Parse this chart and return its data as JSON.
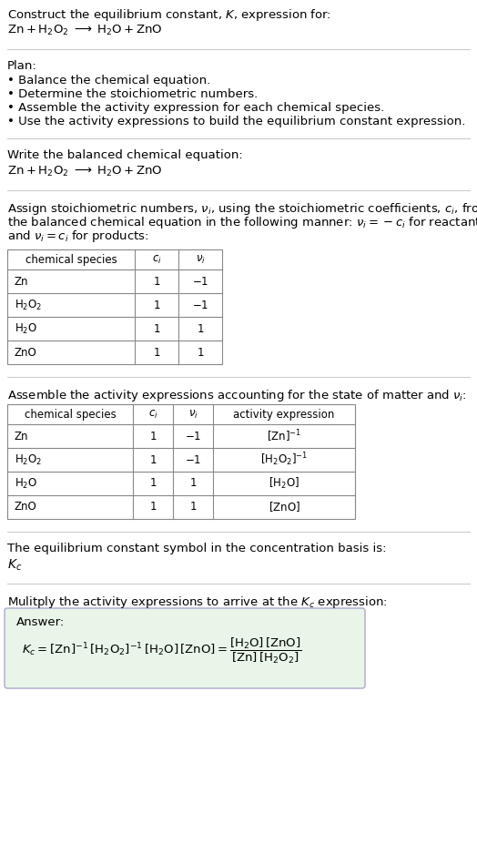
{
  "bg_color": "#ffffff",
  "text_color": "#000000",
  "title_line1": "Construct the equilibrium constant, $K$, expression for:",
  "title_line2": "$\\mathrm{Zn + H_2O_2 \\;\\longrightarrow\\; H_2O + ZnO}$",
  "plan_header": "Plan:",
  "plan_items": [
    "• Balance the chemical equation.",
    "• Determine the stoichiometric numbers.",
    "• Assemble the activity expression for each chemical species.",
    "• Use the activity expressions to build the equilibrium constant expression."
  ],
  "balanced_header": "Write the balanced chemical equation:",
  "balanced_eq": "$\\mathrm{Zn + H_2O_2 \\;\\longrightarrow\\; H_2O + ZnO}$",
  "stoich_text": [
    "Assign stoichiometric numbers, $\\nu_i$, using the stoichiometric coefficients, $c_i$, from",
    "the balanced chemical equation in the following manner: $\\nu_i = -c_i$ for reactants",
    "and $\\nu_i = c_i$ for products:"
  ],
  "table1_headers": [
    "chemical species",
    "$c_i$",
    "$\\nu_i$"
  ],
  "table1_rows": [
    [
      "Zn",
      "1",
      "$-1$"
    ],
    [
      "$\\mathrm{H_2O_2}$",
      "1",
      "$-1$"
    ],
    [
      "$\\mathrm{H_2O}$",
      "1",
      "1"
    ],
    [
      "ZnO",
      "1",
      "1"
    ]
  ],
  "activity_header": "Assemble the activity expressions accounting for the state of matter and $\\nu_i$:",
  "table2_headers": [
    "chemical species",
    "$c_i$",
    "$\\nu_i$",
    "activity expression"
  ],
  "table2_rows": [
    [
      "Zn",
      "1",
      "$-1$",
      "$[\\mathrm{Zn}]^{-1}$"
    ],
    [
      "$\\mathrm{H_2O_2}$",
      "1",
      "$-1$",
      "$[\\mathrm{H_2O_2}]^{-1}$"
    ],
    [
      "$\\mathrm{H_2O}$",
      "1",
      "1",
      "$[\\mathrm{H_2O}]$"
    ],
    [
      "ZnO",
      "1",
      "1",
      "$[\\mathrm{ZnO}]$"
    ]
  ],
  "kc_header": "The equilibrium constant symbol in the concentration basis is:",
  "kc_symbol": "$K_c$",
  "multiply_header": "Mulitply the activity expressions to arrive at the $K_c$ expression:",
  "answer_label": "Answer:",
  "answer_eq_full": "$K_c = [\\mathrm{Zn}]^{-1}\\,[\\mathrm{H_2O_2}]^{-1}\\,[\\mathrm{H_2O}]\\,[\\mathrm{ZnO}] = \\dfrac{[\\mathrm{H_2O}]\\,[\\mathrm{ZnO}]}{[\\mathrm{Zn}]\\,[\\mathrm{H_2O_2}]}$",
  "answer_box_color": "#e8f5e8",
  "table_border_color": "#888888",
  "sep_line_color": "#cccccc",
  "font_size": 9.5
}
